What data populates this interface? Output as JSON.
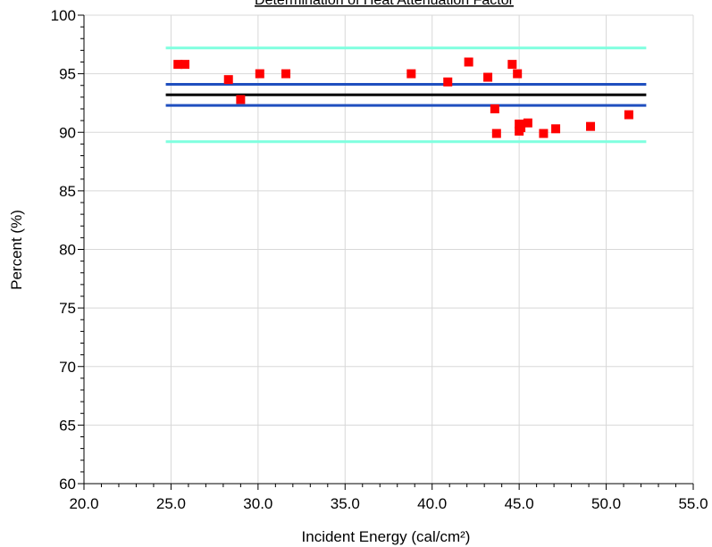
{
  "chart_data": {
    "type": "scatter",
    "title": "Determination of Heat Attenuation Factor",
    "xlabel": "Incident Energy (cal/cm²)",
    "ylabel": "Percent (%)",
    "xlim": [
      20.0,
      55.0
    ],
    "ylim": [
      60,
      100
    ],
    "x_ticks": [
      20.0,
      25.0,
      30.0,
      35.0,
      40.0,
      45.0,
      50.0,
      55.0
    ],
    "x_tick_labels": [
      "20.0",
      "25.0",
      "30.0",
      "35.0",
      "40.0",
      "45.0",
      "50.0",
      "55.0"
    ],
    "y_ticks": [
      60,
      65,
      70,
      75,
      80,
      85,
      90,
      95,
      100
    ],
    "y_tick_labels": [
      "60",
      "65",
      "70",
      "75",
      "80",
      "85",
      "90",
      "95",
      "100"
    ],
    "grid": true,
    "points": {
      "color": "#ff0000",
      "x": [
        25.4,
        25.8,
        28.3,
        29.0,
        30.1,
        31.6,
        38.8,
        40.9,
        42.1,
        43.2,
        43.6,
        43.7,
        44.6,
        44.9,
        45.0,
        45.0,
        45.1,
        45.5,
        46.4,
        47.1,
        49.1,
        51.3
      ],
      "y": [
        95.8,
        95.8,
        94.5,
        92.8,
        95.0,
        95.0,
        95.0,
        94.3,
        96.0,
        94.7,
        92.0,
        89.9,
        95.8,
        95.0,
        90.7,
        90.1,
        90.4,
        90.8,
        89.9,
        90.3,
        90.5,
        91.5
      ]
    },
    "reference_lines": [
      {
        "y": 97.2,
        "x_start": 24.7,
        "x_end": 52.3,
        "color": "#7fffdf"
      },
      {
        "y": 94.1,
        "x_start": 24.7,
        "x_end": 52.3,
        "color": "#1f4fbf"
      },
      {
        "y": 93.2,
        "x_start": 24.7,
        "x_end": 52.3,
        "color": "#000000"
      },
      {
        "y": 92.3,
        "x_start": 24.7,
        "x_end": 52.3,
        "color": "#1f4fbf"
      },
      {
        "y": 89.2,
        "x_start": 24.7,
        "x_end": 52.3,
        "color": "#7fffdf"
      }
    ]
  }
}
